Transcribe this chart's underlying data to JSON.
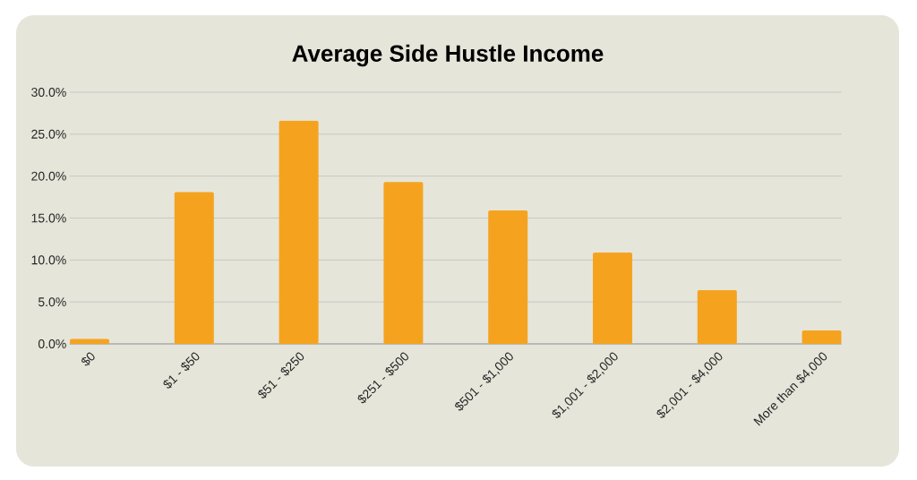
{
  "chart_data": {
    "type": "bar",
    "title": "Average Side Hustle Income",
    "categories": [
      "$0",
      "$1 - $50",
      "$51 - $250",
      "$251 - $500",
      "$501 - $1,000",
      "$1,001 - $2,000",
      "$2,001 - $4,000",
      "More than $4,000"
    ],
    "values": [
      0.6,
      18.1,
      26.6,
      19.3,
      15.9,
      10.9,
      6.4,
      1.6
    ],
    "color": "#f5a31f",
    "ylim": [
      0,
      30
    ],
    "yticks": [
      {
        "value": 0,
        "label": "0.0%"
      },
      {
        "value": 5,
        "label": "5.0%"
      },
      {
        "value": 10,
        "label": "10.0%"
      },
      {
        "value": 15,
        "label": "15.0%"
      },
      {
        "value": 20,
        "label": "20.0%"
      },
      {
        "value": 25,
        "label": "25.0%"
      },
      {
        "value": 30,
        "label": "30.0%"
      }
    ],
    "grid": "y"
  }
}
